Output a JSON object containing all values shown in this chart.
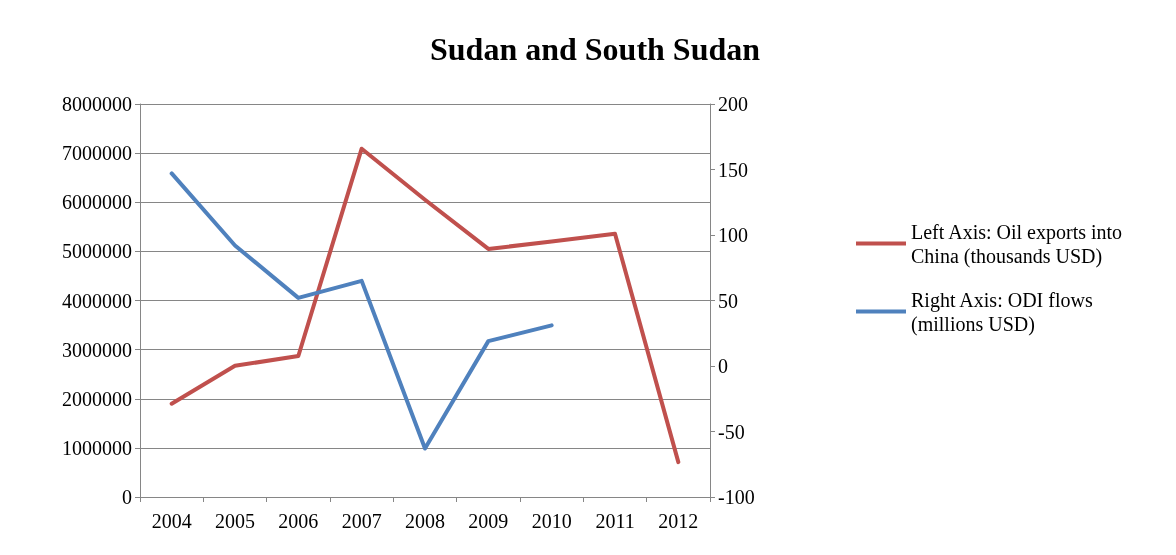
{
  "chart_data": {
    "type": "line",
    "title": "Sudan and South Sudan",
    "categories": [
      "2004",
      "2005",
      "2006",
      "2007",
      "2008",
      "2009",
      "2010",
      "2011",
      "2012"
    ],
    "series": [
      {
        "name": "Left Axis: Oil exports into China (thousands USD)",
        "color": "#c0504d",
        "values": [
          1900000,
          2670000,
          2870000,
          7090000,
          6050000,
          5050000,
          5200000,
          5360000,
          710000
        ]
      },
      {
        "name": "Right Axis: ODI flows (millions USD)",
        "color": "#4f81bd",
        "axis": "y2",
        "values": [
          147,
          92,
          52,
          65,
          -63,
          19,
          31,
          null,
          null
        ]
      }
    ],
    "ylim": [
      0,
      8000000
    ],
    "yticks": [
      0,
      1000000,
      2000000,
      3000000,
      4000000,
      5000000,
      6000000,
      7000000,
      8000000
    ],
    "y2lim": [
      -100,
      200
    ],
    "y2ticks": [
      -100,
      -50,
      0,
      50,
      100,
      150,
      200
    ],
    "grid": "y",
    "legend": "right",
    "marker": "none",
    "line_style": "solid"
  }
}
